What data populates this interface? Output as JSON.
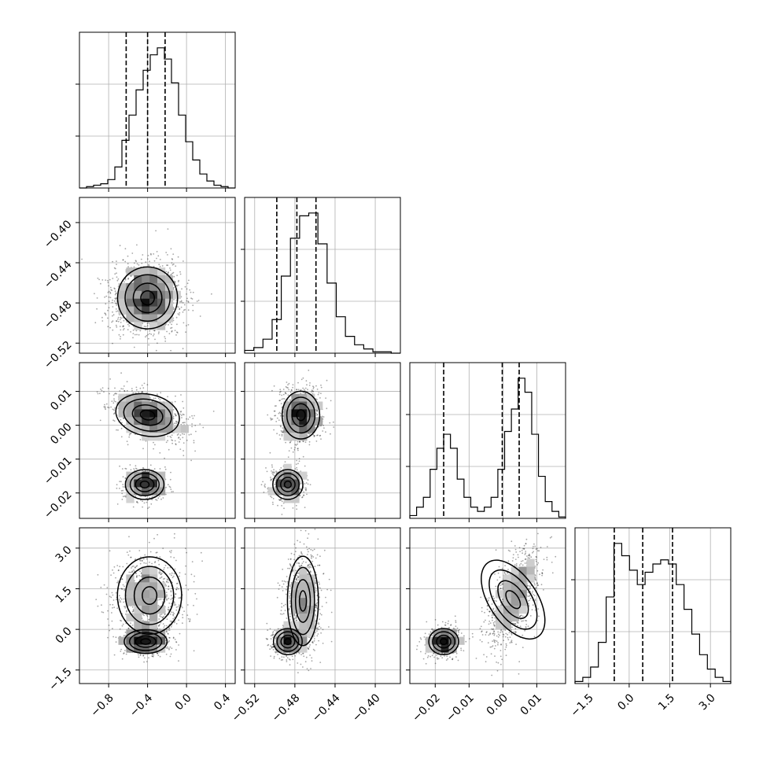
{
  "chart_data": {
    "type": "scatter",
    "subtype": "corner_plot",
    "parameters": 4,
    "title": "",
    "grid": true,
    "legend": "none",
    "point_color": "#000000",
    "line_color": "#000000",
    "axes": [
      {
        "id": "p0",
        "range": [
          -1.1,
          0.5
        ],
        "ticks": [
          -0.8,
          -0.4,
          0.0,
          0.4
        ],
        "tick_labels": [
          "−0.8",
          "−0.4",
          "0.0",
          "0.4"
        ]
      },
      {
        "id": "p1",
        "range": [
          -0.53,
          -0.375
        ],
        "ticks": [
          -0.52,
          -0.48,
          -0.44,
          -0.4
        ],
        "tick_labels": [
          "−0.52",
          "−0.48",
          "−0.44",
          "−0.40"
        ]
      },
      {
        "id": "p2",
        "range": [
          -0.0275,
          0.0185
        ],
        "ticks": [
          -0.02,
          -0.01,
          0.0,
          0.01
        ],
        "tick_labels": [
          "−0.02",
          "−0.01",
          "0.00",
          "0.01"
        ]
      },
      {
        "id": "p3",
        "range": [
          -2.0,
          3.75
        ],
        "ticks": [
          -1.5,
          0.0,
          1.5,
          3.0
        ],
        "tick_labels": [
          "−1.5",
          "0.0",
          "1.5",
          "3.0"
        ]
      }
    ],
    "marginals": [
      {
        "param": 0,
        "quantiles": [
          -0.62,
          -0.4,
          -0.22
        ],
        "bins": [
          -1.1,
          0.5
        ],
        "values": [
          0,
          1,
          2,
          3,
          6,
          15,
          34,
          52,
          70,
          84,
          95,
          100,
          92,
          75,
          52,
          33,
          20,
          10,
          5,
          2,
          1,
          0
        ]
      },
      {
        "param": 1,
        "quantiles": [
          -0.498,
          -0.478,
          -0.459
        ],
        "bins": [
          -0.53,
          -0.375
        ],
        "values": [
          2,
          4,
          10,
          24,
          55,
          82,
          98,
          100,
          78,
          50,
          26,
          12,
          6,
          3,
          1,
          1,
          0
        ]
      },
      {
        "param": 2,
        "quantiles": [
          -0.0175,
          -0.0002,
          0.0048
        ],
        "bins": [
          -0.0275,
          0.0185
        ],
        "values": [
          2,
          8,
          15,
          35,
          50,
          60,
          50,
          28,
          15,
          8,
          5,
          8,
          15,
          35,
          62,
          78,
          100,
          90,
          60,
          30,
          12,
          5,
          1
        ]
      },
      {
        "param": 3,
        "quantiles": [
          -0.55,
          0.5,
          1.6
        ],
        "bins": [
          -2.0,
          3.75
        ],
        "values": [
          1,
          3,
          8,
          20,
          42,
          68,
          62,
          55,
          48,
          54,
          58,
          60,
          58,
          48,
          36,
          24,
          14,
          7,
          3,
          1
        ]
      }
    ],
    "joint": [
      {
        "x": 0,
        "y": 1,
        "modes": [
          {
            "mx": -0.4,
            "my": -0.475,
            "sx": 0.14,
            "sy": 0.014,
            "rho": 0.0,
            "w": 1.0
          }
        ]
      },
      {
        "x": 0,
        "y": 2,
        "modes": [
          {
            "mx": -0.4,
            "my": 0.003,
            "sx": 0.15,
            "sy": 0.0028,
            "rho": -0.45,
            "w": 0.65
          },
          {
            "mx": -0.43,
            "my": -0.0175,
            "sx": 0.09,
            "sy": 0.002,
            "rho": 0.0,
            "w": 0.35
          }
        ]
      },
      {
        "x": 1,
        "y": 2,
        "modes": [
          {
            "mx": -0.474,
            "my": 0.003,
            "sx": 0.0085,
            "sy": 0.0032,
            "rho": 0.0,
            "w": 0.65
          },
          {
            "mx": -0.487,
            "my": -0.0175,
            "sx": 0.0068,
            "sy": 0.002,
            "rho": 0.0,
            "w": 0.35
          }
        ]
      },
      {
        "x": 0,
        "y": 3,
        "modes": [
          {
            "mx": -0.38,
            "my": 1.25,
            "sx": 0.15,
            "sy": 0.65,
            "rho": 0.0,
            "w": 0.62
          },
          {
            "mx": -0.42,
            "my": -0.45,
            "sx": 0.1,
            "sy": 0.2,
            "rho": 0.0,
            "w": 0.38
          }
        ]
      },
      {
        "x": 1,
        "y": 3,
        "modes": [
          {
            "mx": -0.472,
            "my": 1.05,
            "sx": 0.007,
            "sy": 0.75,
            "rho": 0.0,
            "w": 0.62
          },
          {
            "mx": -0.487,
            "my": -0.45,
            "sx": 0.0065,
            "sy": 0.22,
            "rho": 0.0,
            "w": 0.38
          }
        ]
      },
      {
        "x": 2,
        "y": 3,
        "modes": [
          {
            "mx": 0.003,
            "my": 1.1,
            "sx": 0.0032,
            "sy": 0.75,
            "rho": 0.6,
            "w": 0.65
          },
          {
            "mx": -0.0175,
            "my": -0.45,
            "sx": 0.002,
            "sy": 0.22,
            "rho": 0.0,
            "w": 0.35
          }
        ]
      }
    ]
  }
}
